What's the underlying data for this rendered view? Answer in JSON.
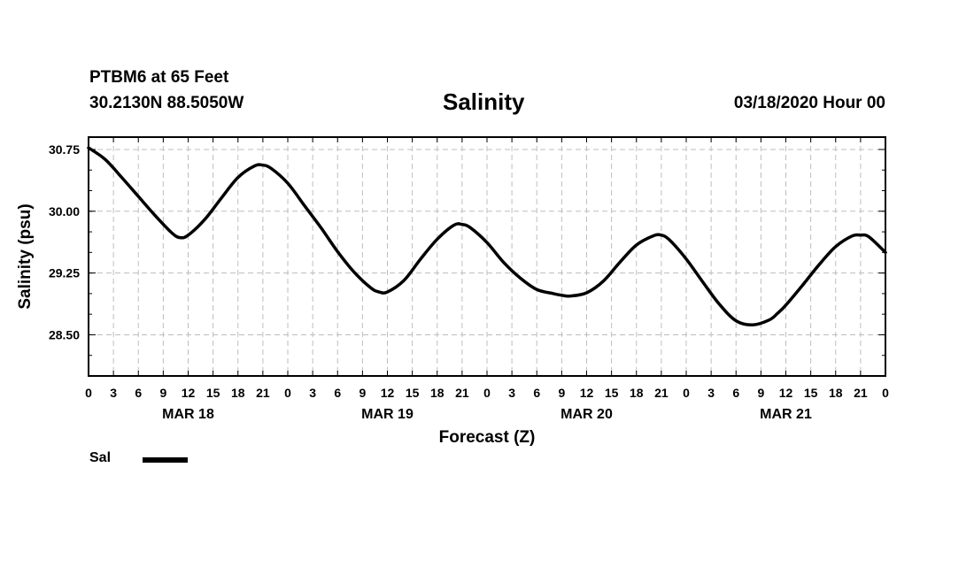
{
  "header": {
    "station": "PTBM6 at 65 Feet",
    "coords": "30.2130N 88.5050W",
    "title": "Salinity",
    "datetime": "03/18/2020 Hour 00"
  },
  "legend": {
    "label": "Sal"
  },
  "chart_data": {
    "type": "line",
    "title": "Salinity",
    "xlabel": "Forecast (Z)",
    "ylabel": "Salinity (psu)",
    "xlim": [
      0,
      96
    ],
    "ylim": [
      28.0,
      30.9
    ],
    "grid": true,
    "x_ticks": [
      0,
      3,
      6,
      9,
      12,
      15,
      18,
      21,
      24,
      27,
      30,
      33,
      36,
      39,
      42,
      45,
      48,
      51,
      54,
      57,
      60,
      63,
      66,
      69,
      72,
      75,
      78,
      81,
      84,
      87,
      90,
      93,
      96
    ],
    "x_tick_labels": [
      "0",
      "3",
      "6",
      "9",
      "12",
      "15",
      "18",
      "21",
      "0",
      "3",
      "6",
      "9",
      "12",
      "15",
      "18",
      "21",
      "0",
      "3",
      "6",
      "9",
      "12",
      "15",
      "18",
      "21",
      "0",
      "3",
      "6",
      "9",
      "12",
      "15",
      "18",
      "21",
      "0"
    ],
    "day_labels": [
      {
        "x": 12,
        "label": "MAR 18"
      },
      {
        "x": 36,
        "label": "MAR 19"
      },
      {
        "x": 60,
        "label": "MAR 20"
      },
      {
        "x": 84,
        "label": "MAR 21"
      }
    ],
    "y_ticks": [
      28.5,
      29.25,
      30.0,
      30.75
    ],
    "y_tick_labels": [
      "28.50",
      "29.25",
      "30.00",
      "30.75"
    ],
    "series": [
      {
        "name": "Sal",
        "color": "#000000",
        "x": [
          0,
          2,
          4,
          6,
          8,
          10,
          11,
          12,
          14,
          16,
          18,
          20,
          21,
          22,
          24,
          26,
          28,
          30,
          32,
          34,
          35,
          36,
          38,
          40,
          42,
          44,
          45,
          46,
          48,
          50,
          52,
          54,
          56,
          57,
          58,
          60,
          62,
          64,
          66,
          68,
          69,
          70,
          72,
          74,
          76,
          78,
          80,
          82,
          83,
          84,
          86,
          88,
          90,
          92,
          93,
          94,
          96
        ],
        "y": [
          30.77,
          30.63,
          30.41,
          30.18,
          29.95,
          29.74,
          29.68,
          29.71,
          29.9,
          30.16,
          30.41,
          30.55,
          30.56,
          30.52,
          30.34,
          30.07,
          29.8,
          29.51,
          29.26,
          29.07,
          29.02,
          29.02,
          29.16,
          29.42,
          29.66,
          29.83,
          29.84,
          29.8,
          29.62,
          29.38,
          29.19,
          29.05,
          29.0,
          28.98,
          28.97,
          29.01,
          29.15,
          29.38,
          29.59,
          29.7,
          29.71,
          29.65,
          29.42,
          29.14,
          28.87,
          28.67,
          28.62,
          28.68,
          28.76,
          28.86,
          29.1,
          29.35,
          29.57,
          29.7,
          29.71,
          29.69,
          29.5
        ]
      }
    ]
  }
}
